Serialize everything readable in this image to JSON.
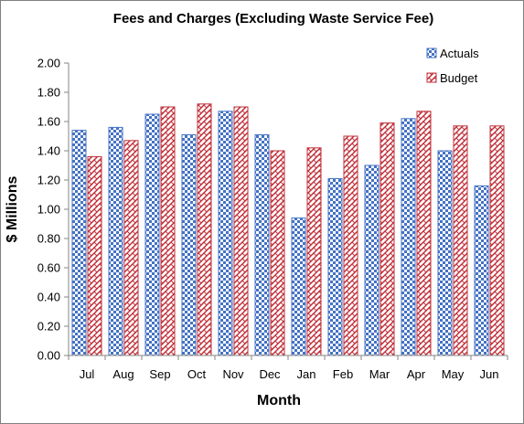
{
  "chart_data": {
    "type": "bar",
    "title": "Fees and Charges (Excluding  Waste Service Fee)",
    "xlabel": "Month",
    "ylabel": "$ Millions",
    "categories": [
      "Jul",
      "Aug",
      "Sep",
      "Oct",
      "Nov",
      "Dec",
      "Jan",
      "Feb",
      "Mar",
      "Apr",
      "May",
      "Jun"
    ],
    "y_ticks": [
      "0.00",
      "0.20",
      "0.40",
      "0.60",
      "0.80",
      "1.00",
      "1.20",
      "1.40",
      "1.60",
      "1.80",
      "2.00"
    ],
    "ylim": [
      0,
      2.0
    ],
    "grid": false,
    "legend_position": "top-right",
    "series": [
      {
        "name": "Actuals",
        "color": "#4472c4",
        "pattern": "checkerboard",
        "values": [
          1.54,
          1.56,
          1.65,
          1.51,
          1.67,
          1.51,
          0.94,
          1.21,
          1.3,
          1.62,
          1.4,
          1.16
        ]
      },
      {
        "name": "Budget",
        "color": "#c0303a",
        "pattern": "diagonal-weave",
        "values": [
          1.36,
          1.47,
          1.7,
          1.72,
          1.7,
          1.4,
          1.42,
          1.5,
          1.59,
          1.67,
          1.57,
          1.57
        ]
      }
    ]
  }
}
